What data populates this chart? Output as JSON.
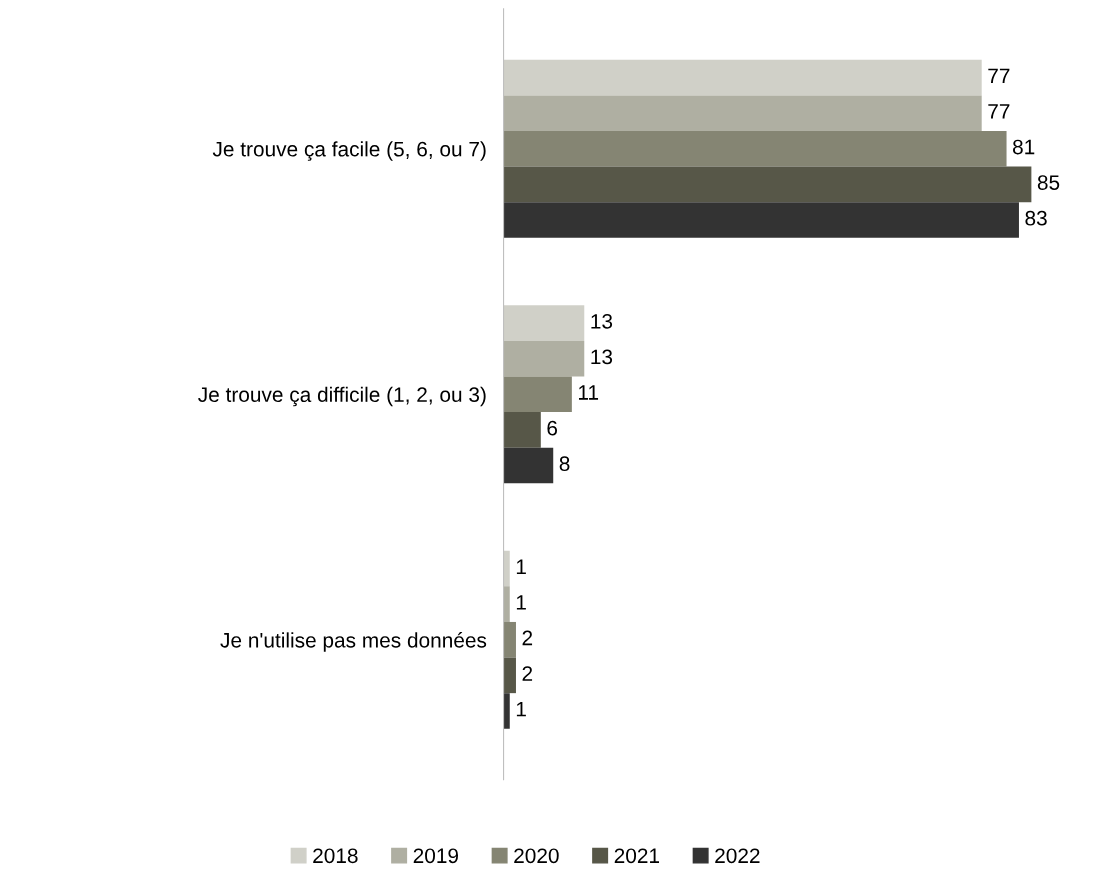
{
  "chart_data": {
    "type": "bar",
    "orientation": "horizontal",
    "categories": [
      "Je trouve ça facile (5, 6, ou 7)",
      "Je trouve ça difficile (1, 2, ou 3)",
      "Je n'utilise pas mes données"
    ],
    "series": [
      {
        "name": "2018",
        "color": "#d0d0c8",
        "values": [
          77,
          13,
          1
        ]
      },
      {
        "name": "2019",
        "color": "#afafa2",
        "values": [
          77,
          13,
          1
        ]
      },
      {
        "name": "2020",
        "color": "#858573",
        "values": [
          81,
          11,
          2
        ]
      },
      {
        "name": "2021",
        "color": "#575748",
        "values": [
          85,
          6,
          2
        ]
      },
      {
        "name": "2022",
        "color": "#333333",
        "values": [
          83,
          8,
          1
        ]
      }
    ],
    "data_labels": true,
    "grid": false,
    "legend": "bottom",
    "tick_labels": "y"
  }
}
